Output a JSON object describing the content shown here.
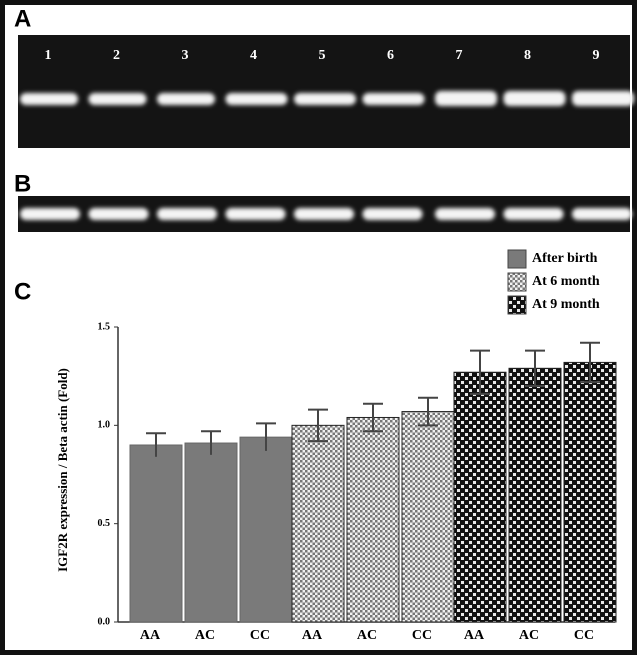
{
  "panels": {
    "gel_a": {
      "label": "A",
      "lanes": [
        "1",
        "2",
        "3",
        "4",
        "5",
        "6",
        "7",
        "8",
        "9"
      ]
    },
    "gel_b": {
      "label": "B"
    }
  },
  "chart_data": {
    "type": "bar",
    "panel_label": "C",
    "y_label": "IGF2R expression / Beta actin (Fold)",
    "categories": [
      "AA",
      "AC",
      "CC"
    ],
    "series": [
      {
        "name": "After birth",
        "color": "#7a7a7a",
        "values": [
          0.9,
          0.91,
          0.94
        ],
        "errors": [
          0.06,
          0.06,
          0.07
        ]
      },
      {
        "name": "At 6 month",
        "color": "#c8c8c8",
        "values": [
          1.0,
          1.04,
          1.07
        ],
        "errors": [
          0.08,
          0.07,
          0.07
        ]
      },
      {
        "name": "At 9 month",
        "color": "#222222",
        "values": [
          1.27,
          1.29,
          1.32
        ],
        "errors": [
          0.11,
          0.09,
          0.1
        ]
      }
    ],
    "ylim": [
      0,
      1.5
    ],
    "yticks": [
      {
        "value": 0,
        "label": "0.0"
      },
      0.5,
      {
        "value": 1,
        "label": "1.0"
      },
      {
        "value": 1.5,
        "label": "1.5"
      }
    ]
  }
}
